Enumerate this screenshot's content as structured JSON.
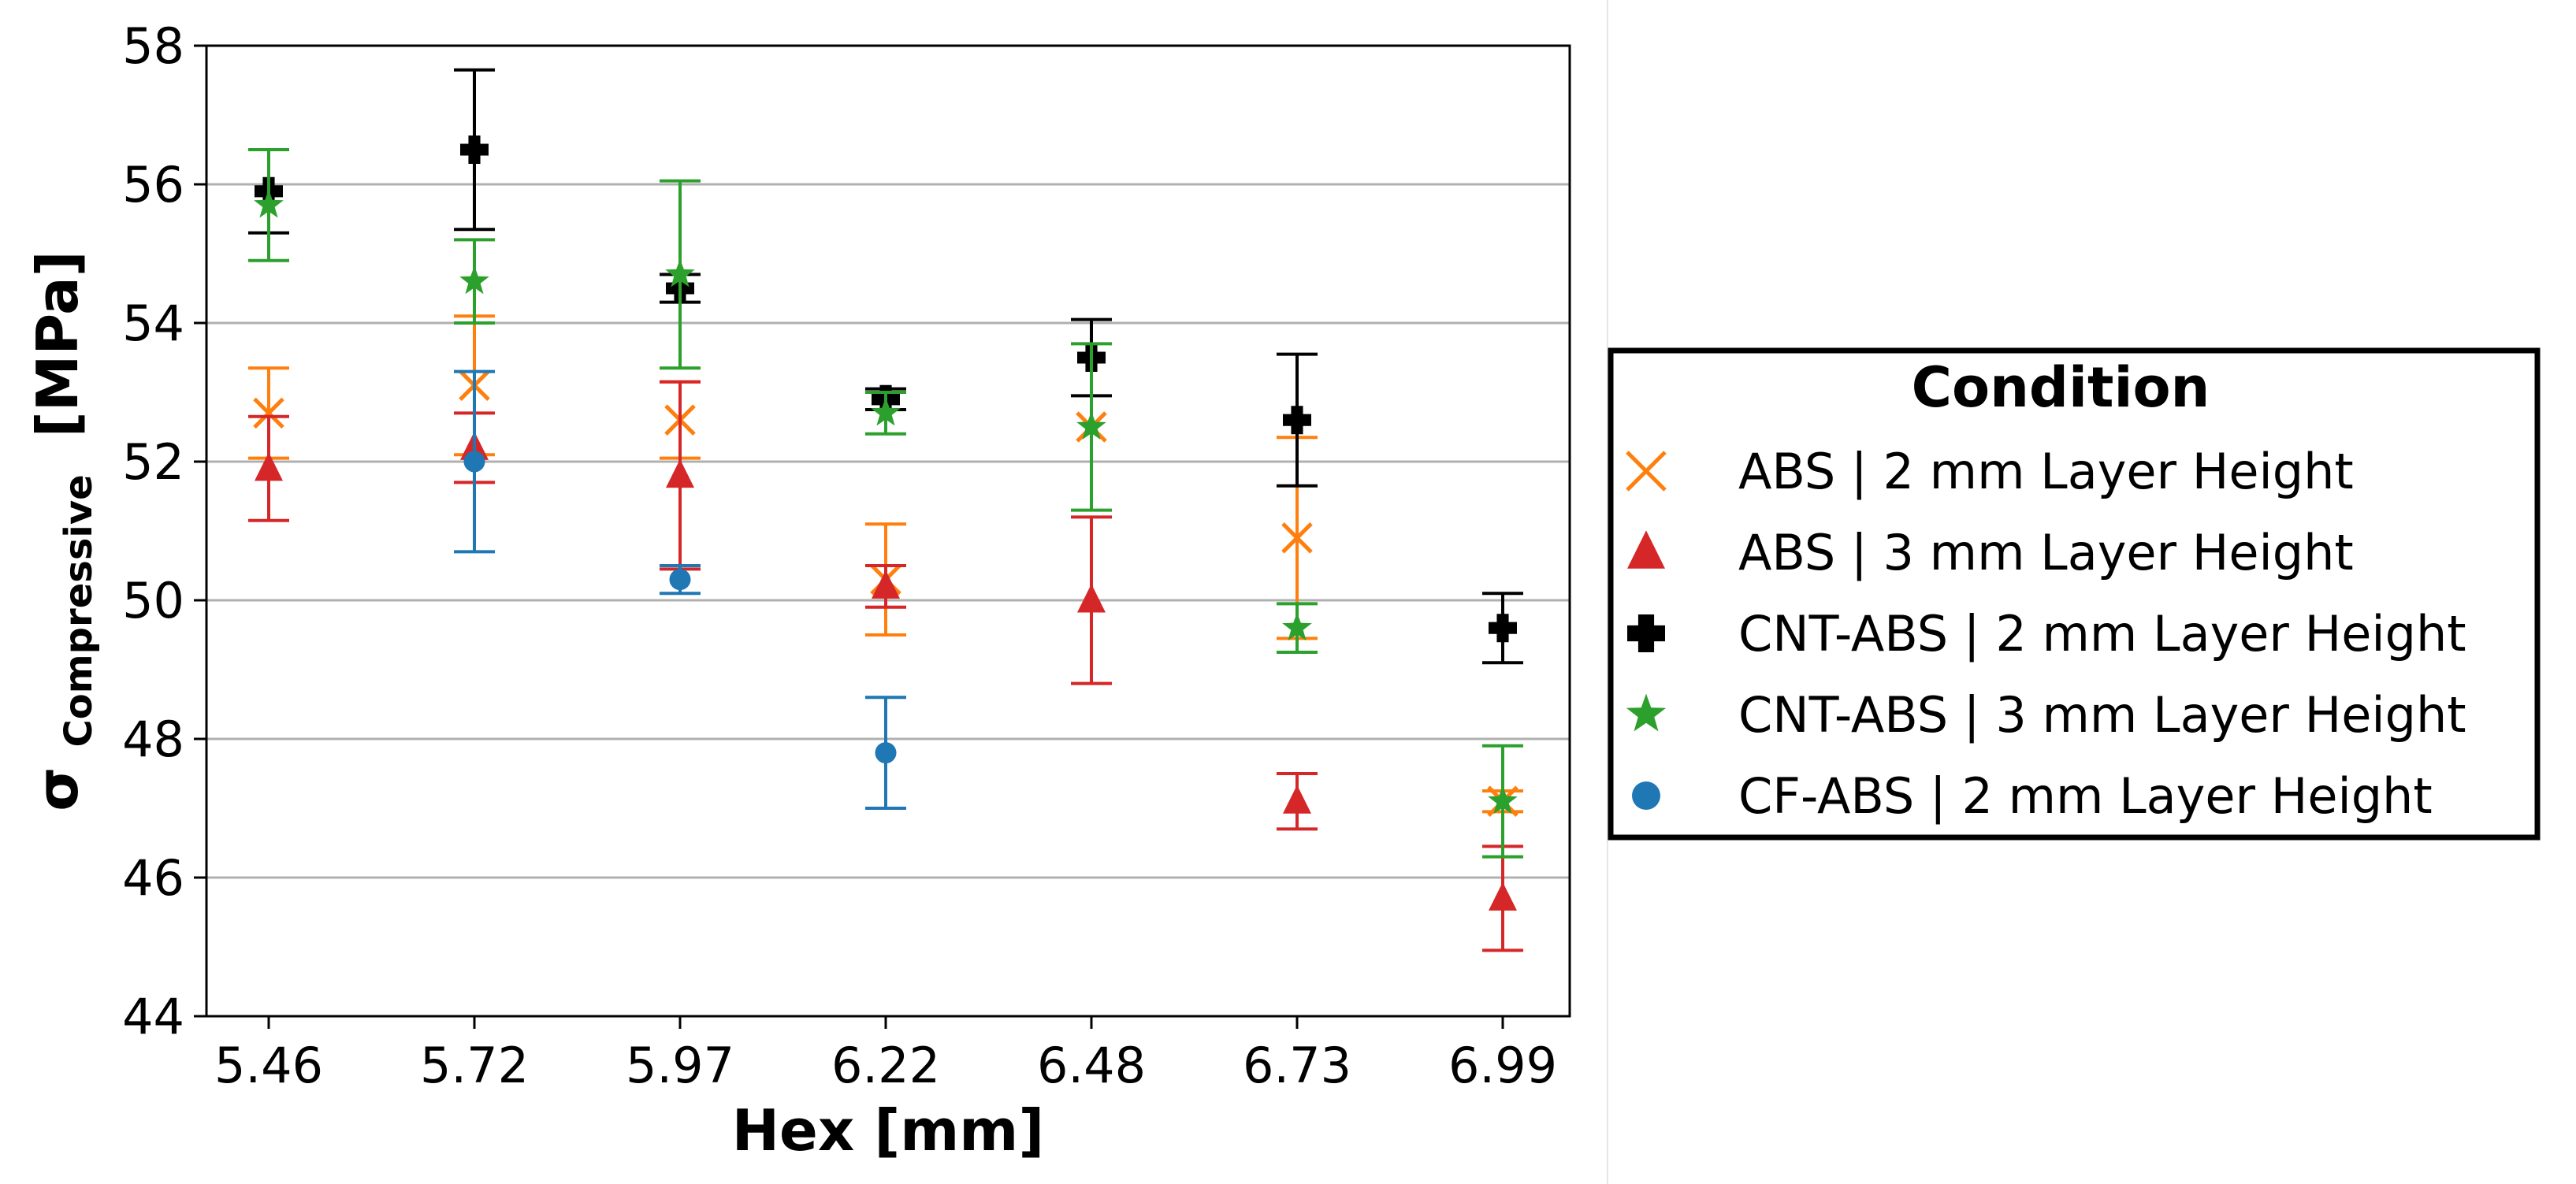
{
  "chart_data": {
    "type": "scatter",
    "title": "",
    "xlabel": "Hex [mm]",
    "ylabel_main": "σ",
    "ylabel_sub": "Compressive",
    "ylabel_unit": "[MPa]",
    "ylim": [
      44,
      58
    ],
    "yticks": [
      "44",
      "46",
      "48",
      "50",
      "52",
      "54",
      "56",
      "58"
    ],
    "categories": [
      "5.46",
      "5.72",
      "5.97",
      "6.22",
      "6.48",
      "6.73",
      "6.99"
    ],
    "grid": "horizontal",
    "legend": {
      "title": "Condition",
      "placement": "right-outside"
    },
    "series": [
      {
        "name": "ABS | 2 mm Layer Height",
        "color": "#ff7f0e",
        "marker": "x",
        "values": [
          52.7,
          53.1,
          52.6,
          50.3,
          52.5,
          50.9,
          47.1
        ],
        "errors": [
          0.65,
          1.0,
          0.55,
          0.8,
          0.0,
          1.45,
          0.15
        ]
      },
      {
        "name": "ABS | 3 mm Layer Height",
        "color": "#d62728",
        "marker": "triangle",
        "values": [
          51.9,
          52.2,
          51.8,
          50.2,
          50.0,
          47.1,
          45.7
        ],
        "errors": [
          0.75,
          0.5,
          1.35,
          0.3,
          1.2,
          0.4,
          0.75
        ]
      },
      {
        "name": "CNT-ABS | 2 mm Layer Height",
        "color": "#000000",
        "marker": "plus",
        "values": [
          55.9,
          56.5,
          54.5,
          52.9,
          53.5,
          52.6,
          49.6
        ],
        "errors": [
          0.6,
          1.15,
          0.2,
          0.15,
          0.55,
          0.95,
          0.5
        ]
      },
      {
        "name": "CNT-ABS | 3 mm Layer Height",
        "color": "#2ca02c",
        "marker": "star",
        "values": [
          55.7,
          54.6,
          54.7,
          52.7,
          52.5,
          49.6,
          47.1
        ],
        "errors": [
          0.8,
          0.6,
          1.35,
          0.3,
          1.2,
          0.35,
          0.8
        ]
      },
      {
        "name": "CF-ABS | 2 mm Layer Height",
        "color": "#1f77b4",
        "marker": "circle",
        "values": [
          null,
          52.0,
          50.3,
          47.8,
          null,
          null,
          null
        ],
        "errors": [
          null,
          1.3,
          0.2,
          0.8,
          null,
          null,
          null
        ]
      }
    ]
  }
}
